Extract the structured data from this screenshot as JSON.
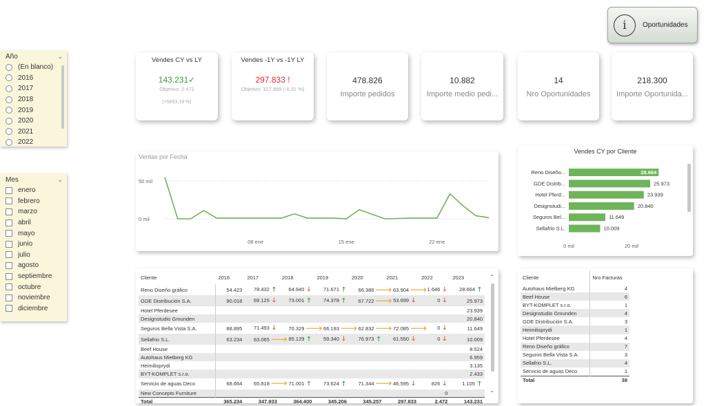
{
  "button": {
    "label": "Oportunidades",
    "icon": "info-icon"
  },
  "year_slicer": {
    "title": "Año",
    "items": [
      "(En blanco)",
      "2016",
      "2017",
      "2018",
      "2019",
      "2020",
      "2021",
      "2022"
    ]
  },
  "month_slicer": {
    "title": "Mes",
    "items": [
      "enero",
      "febrero",
      "marzo",
      "abril",
      "mayo",
      "junio",
      "julio",
      "agosto",
      "septiembre",
      "octubre",
      "noviembre",
      "diciembre"
    ]
  },
  "kpis": {
    "cy_vs_ly": {
      "title": "Vendes CY vs LY",
      "value": "143.231",
      "check": "✓",
      "goal": "Objetivo: 2.472",
      "pct": "(+5693,19 %)",
      "color": "#3c9a3c"
    },
    "py_vs_ly": {
      "title": "Vendes -1Y vs -1Y LY",
      "value": "297.833",
      "bang": "!",
      "goal": "Objetivo: 317.889 (-6,31 %)",
      "color": "#e03030"
    },
    "cards": [
      {
        "value": "478.826",
        "label": "Importe pedidos"
      },
      {
        "value": "10.882",
        "label": "Importe medio pedi..."
      },
      {
        "value": "14",
        "label": "Nro Oportunidades"
      },
      {
        "value": "218.300",
        "label": "Importe Oportunida..."
      }
    ]
  },
  "line_chart": {
    "title": "Ventas por Fecha"
  },
  "bar_chart": {
    "title": "Vendes CY por Cliente"
  },
  "chart_data": [
    {
      "type": "line",
      "title": "Ventas por Fecha",
      "y_ticks": [
        "50 mil",
        "0 mil"
      ],
      "x_ticks": [
        "08 ene",
        "15 ene",
        "22 ene"
      ],
      "ylim": [
        0,
        60000
      ],
      "line_color": "#6fb35a",
      "x": [
        1,
        2,
        3,
        4,
        5,
        6,
        7,
        8,
        9,
        10,
        11,
        12,
        13,
        14,
        15,
        16,
        17,
        18,
        19,
        20,
        21,
        22,
        23,
        24,
        25,
        26
      ],
      "values": [
        55000,
        0,
        0,
        11000,
        1000,
        1000,
        1000,
        1000,
        1000,
        1000,
        6500,
        1000,
        1000,
        1000,
        0,
        12000,
        6000,
        0,
        500,
        1000,
        1000,
        1000,
        33000,
        17500,
        4000,
        1500
      ]
    },
    {
      "type": "bar",
      "orientation": "horizontal",
      "title": "Vendes CY por Cliente",
      "categories": [
        "Reno Diseño...",
        "GDE Distrib...",
        "Hotel Pferd...",
        "Designstudi...",
        "Seguros Bel...",
        "Sellafrio S.L."
      ],
      "values": [
        28664,
        25973,
        23939,
        20840,
        11649,
        10009
      ],
      "value_labels": [
        "28.664",
        "25.973",
        "23.939",
        "20.840",
        "11.649",
        "10.009"
      ],
      "x_ticks": [
        "0 mil",
        "20 mil"
      ],
      "xlim": [
        0,
        33000
      ],
      "bar_color": "#6fb35a"
    }
  ],
  "main_table": {
    "headers": [
      "Cliente",
      "2016",
      "2017",
      "2018",
      "2019",
      "2020",
      "2021",
      "2022",
      "2023"
    ],
    "rows": [
      {
        "c": "Reno Diseño gráfico",
        "v": [
          [
            "54.423",
            ""
          ],
          [
            "78.432",
            "up"
          ],
          [
            "64.940",
            "down"
          ],
          [
            "71.671",
            "up"
          ],
          [
            "66.386",
            "right"
          ],
          [
            "63.904",
            "right"
          ],
          [
            "1.646",
            "down"
          ],
          [
            "28.664",
            "up"
          ]
        ]
      },
      {
        "c": "GDE Distribución S.A.",
        "v": [
          [
            "90.018",
            ""
          ],
          [
            "69.125",
            "down"
          ],
          [
            "73.001",
            "up"
          ],
          [
            "74.378",
            "up"
          ],
          [
            "67.722",
            "right"
          ],
          [
            "53.699",
            "down"
          ],
          [
            "0",
            "down"
          ],
          [
            "25.973",
            ""
          ]
        ]
      },
      {
        "c": "Hotel Pferdesee",
        "v": [
          [
            "",
            ""
          ],
          [
            "",
            ""
          ],
          [
            "",
            ""
          ],
          [
            "",
            ""
          ],
          [
            "",
            ""
          ],
          [
            "",
            ""
          ],
          [
            "",
            ""
          ],
          [
            "23.939",
            ""
          ]
        ]
      },
      {
        "c": "Designstudio Gmunden",
        "v": [
          [
            "",
            ""
          ],
          [
            "",
            ""
          ],
          [
            "",
            ""
          ],
          [
            "",
            ""
          ],
          [
            "",
            ""
          ],
          [
            "",
            ""
          ],
          [
            "",
            ""
          ],
          [
            "20.840",
            ""
          ]
        ]
      },
      {
        "c": "Seguros Bella Vista S.A.",
        "v": [
          [
            "88.895",
            ""
          ],
          [
            "71.493",
            "down"
          ],
          [
            "70.329",
            "right"
          ],
          [
            "66.193",
            "right"
          ],
          [
            "62.832",
            "right"
          ],
          [
            "72.085",
            "right"
          ],
          [
            "0",
            "down"
          ],
          [
            "11.649",
            ""
          ]
        ]
      },
      {
        "c": "Sellafrio S.L.",
        "v": [
          [
            "63.234",
            ""
          ],
          [
            "63.065",
            "right"
          ],
          [
            "85.129",
            "up"
          ],
          [
            "59.340",
            "down"
          ],
          [
            "76.973",
            "up"
          ],
          [
            "61.550",
            "down"
          ],
          [
            "0",
            "down"
          ],
          [
            "10.009",
            ""
          ]
        ]
      },
      {
        "c": "Beef House",
        "v": [
          [
            "",
            ""
          ],
          [
            "",
            ""
          ],
          [
            "",
            ""
          ],
          [
            "",
            ""
          ],
          [
            "",
            ""
          ],
          [
            "",
            ""
          ],
          [
            "",
            ""
          ],
          [
            "8.524",
            ""
          ]
        ]
      },
      {
        "c": "Autohaus Mielberg KG",
        "v": [
          [
            "",
            ""
          ],
          [
            "",
            ""
          ],
          [
            "",
            ""
          ],
          [
            "",
            ""
          ],
          [
            "",
            ""
          ],
          [
            "",
            ""
          ],
          [
            "",
            ""
          ],
          [
            "6.959",
            ""
          ]
        ]
      },
      {
        "c": "Heimilisprydi",
        "v": [
          [
            "",
            ""
          ],
          [
            "",
            ""
          ],
          [
            "",
            ""
          ],
          [
            "",
            ""
          ],
          [
            "",
            ""
          ],
          [
            "",
            ""
          ],
          [
            "",
            ""
          ],
          [
            "3.135",
            ""
          ]
        ]
      },
      {
        "c": "BYT-KOMPLET s.r.o.",
        "v": [
          [
            "",
            ""
          ],
          [
            "",
            ""
          ],
          [
            "",
            ""
          ],
          [
            "",
            ""
          ],
          [
            "",
            ""
          ],
          [
            "",
            ""
          ],
          [
            "",
            ""
          ],
          [
            "2.433",
            ""
          ]
        ]
      },
      {
        "c": "Servicio de aguas Deco",
        "v": [
          [
            "68.664",
            ""
          ],
          [
            "65.818",
            "right"
          ],
          [
            "71.001",
            "up"
          ],
          [
            "73.624",
            "up"
          ],
          [
            "71.344",
            "right"
          ],
          [
            "46.595",
            "down"
          ],
          [
            "826",
            "down"
          ],
          [
            "1.105",
            "up"
          ]
        ]
      },
      {
        "c": "New Concepts Furniture",
        "v": [
          [
            "",
            ""
          ],
          [
            "",
            ""
          ],
          [
            "",
            ""
          ],
          [
            "",
            ""
          ],
          [
            "",
            ""
          ],
          [
            "",
            ""
          ],
          [
            "0",
            ""
          ],
          [
            "",
            ""
          ]
        ]
      }
    ],
    "total": {
      "label": "Total",
      "v": [
        "365.234",
        "347.933",
        "364.400",
        "345.206",
        "345.257",
        "297.833",
        "2.472",
        "143.231"
      ]
    }
  },
  "fact_table": {
    "headers": [
      "Cliente",
      "Nro Facturas"
    ],
    "rows": [
      [
        "Autohaus Mielberg KG",
        "4"
      ],
      [
        "Beef House",
        "6"
      ],
      [
        "BYT-KOMPLET s.r.o.",
        "1"
      ],
      [
        "Designstudio Gmunden",
        "4"
      ],
      [
        "GDE Distribución S.A.",
        "3"
      ],
      [
        "Heimilisprydi",
        "1"
      ],
      [
        "Hotel Pferdesee",
        "4"
      ],
      [
        "Reno Diseño gráfico",
        "7"
      ],
      [
        "Seguros Bella Vista S.A.",
        "3"
      ],
      [
        "Sellafrio S.L.",
        "4"
      ],
      [
        "Servicio de aguas Deco",
        "1"
      ]
    ],
    "total": [
      "Total",
      "38"
    ]
  },
  "arrows": {
    "up": "🡑",
    "down": "🡓",
    "right": "🡒"
  }
}
